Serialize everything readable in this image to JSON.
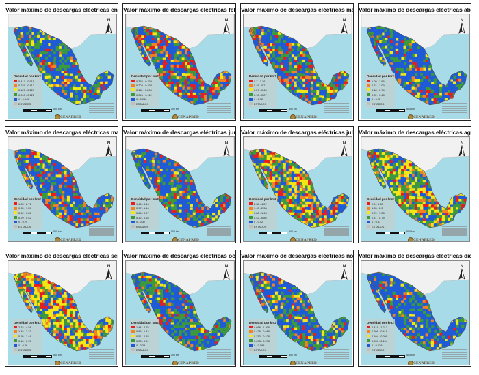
{
  "legend_title": "Densidad por km2",
  "states_label": "ESTADOS",
  "org_label": "CENAPRED",
  "north_letter": "N",
  "scale_label": "500 km",
  "colors": {
    "class1": "#e81e1e",
    "class2": "#f58220",
    "class3": "#f5e716",
    "class4": "#3c9a3c",
    "class5": "#1f5bd6",
    "states": "#bfbfbf",
    "sea": "#a8dbe8",
    "usa": "#f1f1f1"
  },
  "panels": [
    {
      "title": "Valor máximo de descargas eléctricas enero",
      "classes": [
        "0.417 - 0.911",
        "0.229 - 0.417",
        "0.125 - 0.229",
        "0.045 - 0.125",
        "0 - 0.045"
      ],
      "mix": [
        0.05,
        0.05,
        0.1,
        0.25,
        0.55
      ]
    },
    {
      "title": "Valor máximo de descargas eléctricas febrero",
      "classes": [
        "0.333 - 0.709",
        "0.203 - 0.333",
        "0.112 - 0.203",
        "0.046 - 0.112",
        "0 - 0.046"
      ],
      "mix": [
        0.2,
        0.12,
        0.08,
        0.2,
        0.4
      ]
    },
    {
      "title": "Valor máximo de descargas eléctricas marzo",
      "classes": [
        "0.7 - 1.36",
        "0.45 - 0.7",
        "0.27 - 0.45",
        "0.12 - 0.27",
        "0 - 0.12"
      ],
      "mix": [
        0.12,
        0.1,
        0.1,
        0.23,
        0.45
      ]
    },
    {
      "title": "Valor máximo de descargas eléctricas abril",
      "classes": [
        "1.09 - 1.96",
        "0.74 - 1.09",
        "0.48 - 0.74",
        "0.22 - 0.48",
        "0 - 0.22"
      ],
      "mix": [
        0.08,
        0.05,
        0.07,
        0.2,
        0.6
      ]
    },
    {
      "title": "Valor máximo de descargas eléctricas mayo",
      "classes": [
        "1.55 - 2.71",
        "0.85 - 1.55",
        "0.52 - 0.85",
        "0.29 - 0.52",
        "0 - 0.29"
      ],
      "mix": [
        0.12,
        0.1,
        0.08,
        0.2,
        0.5
      ]
    },
    {
      "title": "Valor máximo de descargas eléctricas junio",
      "classes": [
        "1.46 - 3.44",
        "0.97 - 1.46",
        "0.65 - 0.97",
        "0.32 - 0.65",
        "0 - 0.32"
      ],
      "mix": [
        0.1,
        0.07,
        0.08,
        0.22,
        0.53
      ]
    },
    {
      "title": "Valor máximo de descargas eléctricas julio",
      "classes": [
        "2.38 - 4.22",
        "1.43 - 2.38",
        "0.86 - 1.43",
        "0.42 - 0.86",
        "0 - 0.42"
      ],
      "mix": [
        0.15,
        0.12,
        0.25,
        0.23,
        0.25
      ]
    },
    {
      "title": "Valor máximo de descargas eléctricas agosto",
      "classes": [
        "2.3 - 3.92",
        "1.33 - 2.3",
        "0.79 - 1.33",
        "0.37 - 0.79",
        "0 - 0.37"
      ],
      "mix": [
        0.1,
        0.08,
        0.27,
        0.3,
        0.25
      ]
    },
    {
      "title": "Valor máximo de descargas eléctricas septiembre",
      "classes": [
        "2.33 - 4.58",
        "1.48 - 2.33",
        "0.95 - 1.48",
        "0.46 - 0.95",
        "0 - 0.46"
      ],
      "mix": [
        0.1,
        0.12,
        0.33,
        0.2,
        0.25
      ]
    },
    {
      "title": "Valor máximo de descargas eléctricas octubre",
      "classes": [
        "1.44 - 2.75",
        "0.85 - 1.44",
        "0.51 - 0.85",
        "0.23 - 0.51",
        "0 - 0.23"
      ],
      "mix": [
        0.07,
        0.05,
        0.07,
        0.31,
        0.5
      ]
    },
    {
      "title": "Valor máximo de descargas eléctricas noviembre",
      "classes": [
        "0.688 - 1.206",
        "0.428 - 0.688",
        "0.233 - 0.428",
        "0.093 - 0.233",
        "0 - 0.093"
      ],
      "mix": [
        0.08,
        0.07,
        0.1,
        0.25,
        0.5
      ]
    },
    {
      "title": "Valor máximo de descargas eléctricas diciembre",
      "classes": [
        "0.419 - 1.212",
        "0.209 - 0.419",
        "0.104 - 0.209",
        "0.039 - 0.104",
        "0 - 0.039"
      ],
      "mix": [
        0.05,
        0.06,
        0.07,
        0.22,
        0.6
      ]
    }
  ]
}
